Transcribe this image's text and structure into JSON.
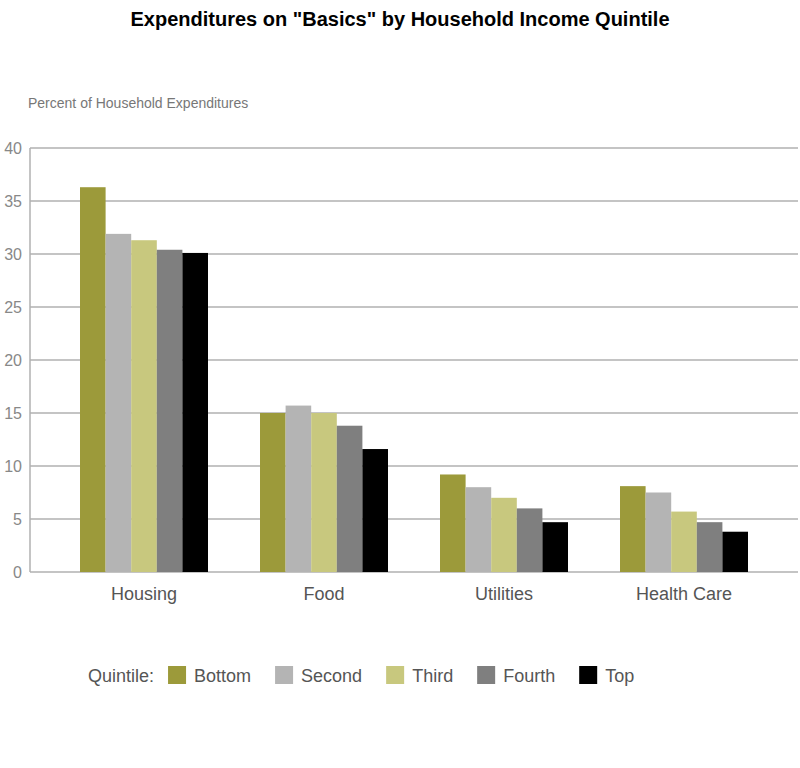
{
  "chart_data": {
    "type": "bar",
    "title": "Expenditures on \"Basics\" by Household Income Quintile",
    "y_label": "Percent of Household Expenditures",
    "legend_title": "Quintile:",
    "categories": [
      "Housing",
      "Food",
      "Utilities",
      "Health Care"
    ],
    "series": [
      {
        "name": "Bottom",
        "color": "#9c9a3a",
        "values": [
          36.3,
          15.0,
          9.2,
          8.1
        ]
      },
      {
        "name": "Second",
        "color": "#b4b4b4",
        "values": [
          31.9,
          15.7,
          8.0,
          7.5
        ]
      },
      {
        "name": "Third",
        "color": "#c8c87e",
        "values": [
          31.3,
          15.0,
          7.0,
          5.7
        ]
      },
      {
        "name": "Fourth",
        "color": "#7f7f7f",
        "values": [
          30.4,
          13.8,
          6.0,
          4.7
        ]
      },
      {
        "name": "Top",
        "color": "#000000",
        "values": [
          30.1,
          11.6,
          4.7,
          3.8
        ]
      }
    ],
    "ylim": [
      0,
      40
    ],
    "yticks": [
      0,
      5,
      10,
      15,
      20,
      25,
      30,
      35,
      40
    ],
    "grid": true,
    "legend": "bottom"
  }
}
